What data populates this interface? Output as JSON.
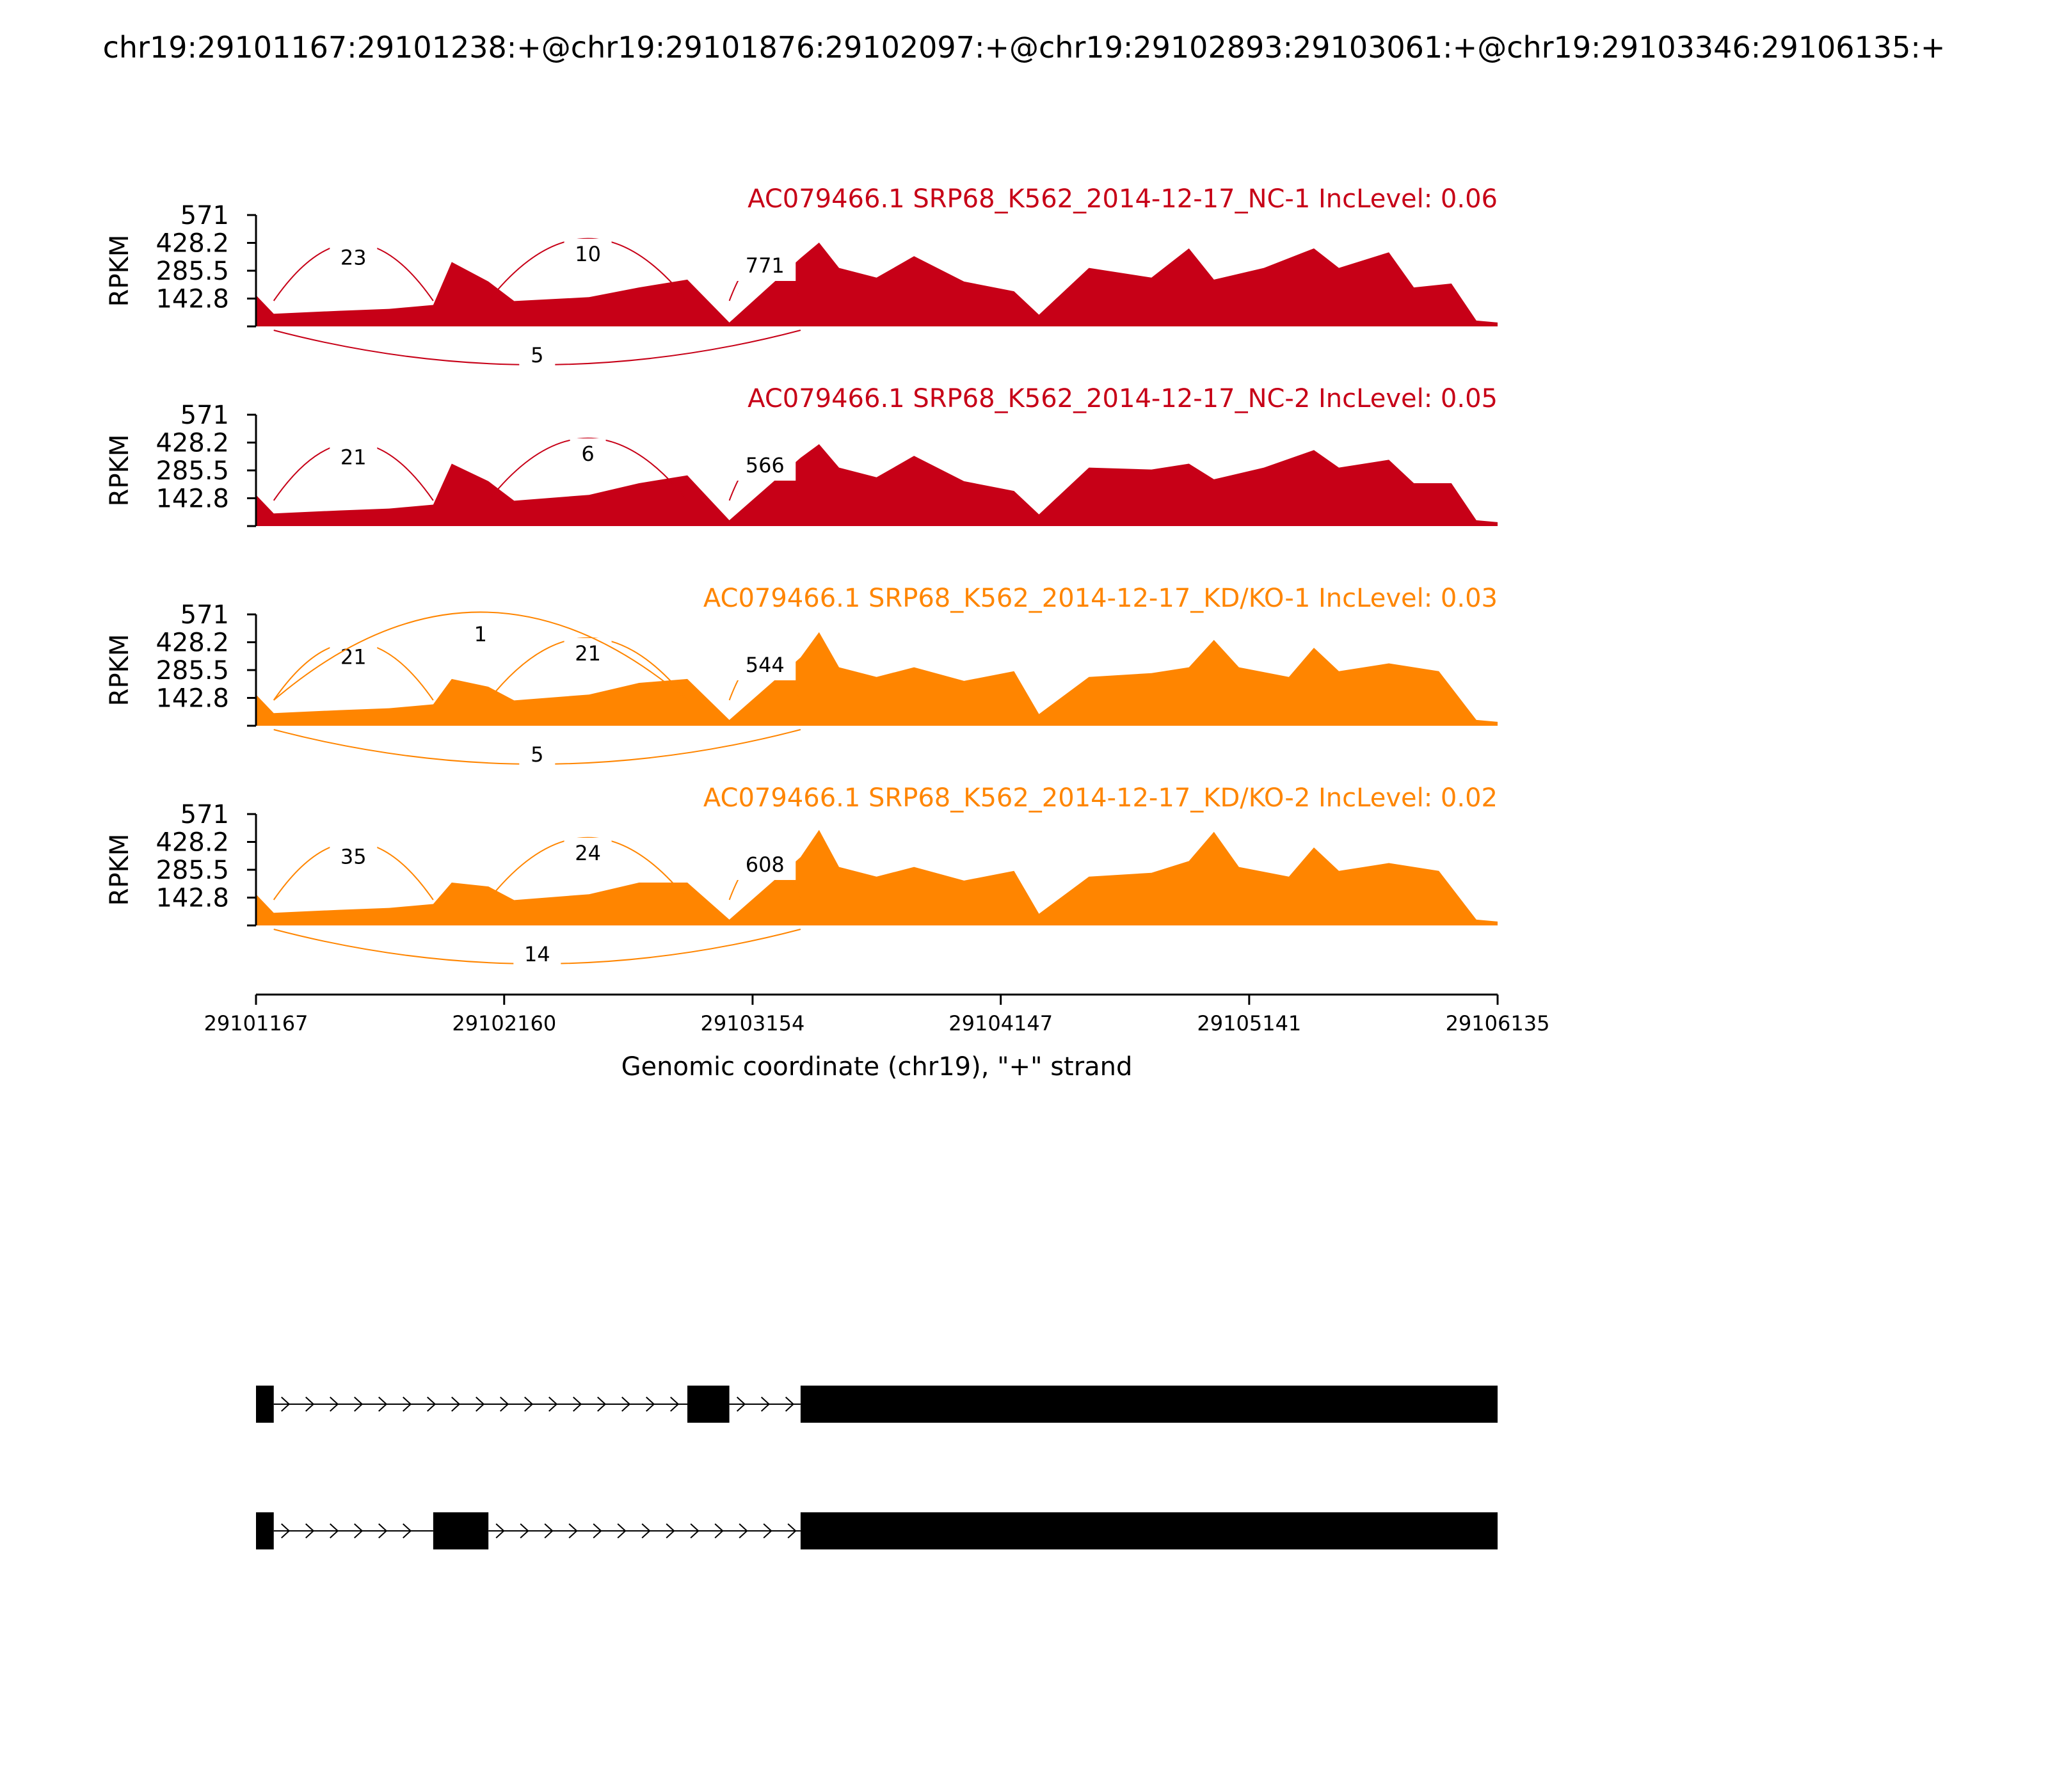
{
  "title": "chr19:29101167:29101238:+@chr19:29101876:29102097:+@chr19:29102893:29103061:+@chr19:29103346:29106135:+",
  "colors": {
    "nc": "#c70017",
    "kd": "#ff8500",
    "axis": "#000000",
    "gene": "#000000"
  },
  "chart_data": {
    "type": "area",
    "xlabel": "Genomic coordinate (chr19), \"+\" strand",
    "ylabel": "RPKM",
    "xlim": [
      29101167,
      29106135
    ],
    "ylim": [
      0,
      571
    ],
    "xticks": [
      29101167,
      29102160,
      29103154,
      29104147,
      29105141,
      29106135
    ],
    "yticks": [
      142.8,
      285.5,
      428.2,
      571
    ],
    "ytick_labels": [
      "142.8",
      "285.5",
      "428.2",
      "571"
    ],
    "exons": [
      [
        29101167,
        29101238
      ],
      [
        29101876,
        29102097
      ],
      [
        29102893,
        29103061
      ],
      [
        29103346,
        29106135
      ]
    ],
    "series": [
      {
        "name": "AC079466.1 SRP68_K562_2014-12-17_NC-1 IncLevel: 0.06",
        "group": "nc",
        "coverage": [
          [
            29101167,
            160
          ],
          [
            29101238,
            65
          ],
          [
            29101500,
            80
          ],
          [
            29101700,
            90
          ],
          [
            29101876,
            110
          ],
          [
            29101950,
            330
          ],
          [
            29102097,
            230
          ],
          [
            29102200,
            130
          ],
          [
            29102500,
            150
          ],
          [
            29102700,
            200
          ],
          [
            29102893,
            240
          ],
          [
            29103061,
            20
          ],
          [
            29103346,
            350
          ],
          [
            29103420,
            430
          ],
          [
            29103500,
            300
          ],
          [
            29103650,
            250
          ],
          [
            29103800,
            360
          ],
          [
            29104000,
            230
          ],
          [
            29104200,
            180
          ],
          [
            29104300,
            60
          ],
          [
            29104500,
            300
          ],
          [
            29104750,
            250
          ],
          [
            29104900,
            400
          ],
          [
            29105000,
            240
          ],
          [
            29105200,
            300
          ],
          [
            29105400,
            400
          ],
          [
            29105500,
            300
          ],
          [
            29105700,
            380
          ],
          [
            29105800,
            200
          ],
          [
            29105950,
            220
          ],
          [
            29106050,
            30
          ],
          [
            29106135,
            20
          ]
        ],
        "junctions": [
          {
            "from": 29101238,
            "to": 29101876,
            "count": "23",
            "side": "above"
          },
          {
            "from": 29102097,
            "to": 29102893,
            "count": "10",
            "side": "above"
          },
          {
            "from": 29103061,
            "to": 29103346,
            "count": "771",
            "side": "above"
          },
          {
            "from": 29101238,
            "to": 29103346,
            "count": "5",
            "side": "below"
          }
        ]
      },
      {
        "name": "AC079466.1 SRP68_K562_2014-12-17_NC-2 IncLevel: 0.05",
        "group": "nc",
        "coverage": [
          [
            29101167,
            160
          ],
          [
            29101238,
            65
          ],
          [
            29101500,
            80
          ],
          [
            29101700,
            90
          ],
          [
            29101876,
            110
          ],
          [
            29101950,
            320
          ],
          [
            29102097,
            230
          ],
          [
            29102200,
            130
          ],
          [
            29102500,
            160
          ],
          [
            29102700,
            220
          ],
          [
            29102893,
            260
          ],
          [
            29103061,
            30
          ],
          [
            29103346,
            350
          ],
          [
            29103420,
            420
          ],
          [
            29103500,
            300
          ],
          [
            29103650,
            250
          ],
          [
            29103800,
            360
          ],
          [
            29104000,
            230
          ],
          [
            29104200,
            180
          ],
          [
            29104300,
            60
          ],
          [
            29104500,
            300
          ],
          [
            29104750,
            290
          ],
          [
            29104900,
            320
          ],
          [
            29105000,
            240
          ],
          [
            29105200,
            300
          ],
          [
            29105400,
            390
          ],
          [
            29105500,
            300
          ],
          [
            29105700,
            340
          ],
          [
            29105800,
            220
          ],
          [
            29105950,
            220
          ],
          [
            29106050,
            30
          ],
          [
            29106135,
            20
          ]
        ],
        "junctions": [
          {
            "from": 29101238,
            "to": 29101876,
            "count": "21",
            "side": "above"
          },
          {
            "from": 29102097,
            "to": 29102893,
            "count": "6",
            "side": "above"
          },
          {
            "from": 29103061,
            "to": 29103346,
            "count": "566",
            "side": "above"
          }
        ]
      },
      {
        "name": "AC079466.1 SRP68_K562_2014-12-17_KD/KO-1 IncLevel: 0.03",
        "group": "kd",
        "coverage": [
          [
            29101167,
            160
          ],
          [
            29101238,
            65
          ],
          [
            29101500,
            80
          ],
          [
            29101700,
            90
          ],
          [
            29101876,
            110
          ],
          [
            29101950,
            240
          ],
          [
            29102097,
            200
          ],
          [
            29102200,
            130
          ],
          [
            29102500,
            160
          ],
          [
            29102700,
            220
          ],
          [
            29102893,
            240
          ],
          [
            29103061,
            30
          ],
          [
            29103346,
            350
          ],
          [
            29103420,
            480
          ],
          [
            29103500,
            300
          ],
          [
            29103650,
            250
          ],
          [
            29103800,
            300
          ],
          [
            29104000,
            230
          ],
          [
            29104200,
            280
          ],
          [
            29104300,
            60
          ],
          [
            29104500,
            250
          ],
          [
            29104750,
            270
          ],
          [
            29104900,
            300
          ],
          [
            29105000,
            440
          ],
          [
            29105100,
            300
          ],
          [
            29105300,
            250
          ],
          [
            29105400,
            400
          ],
          [
            29105500,
            280
          ],
          [
            29105700,
            320
          ],
          [
            29105900,
            280
          ],
          [
            29106050,
            30
          ],
          [
            29106135,
            20
          ]
        ],
        "junctions": [
          {
            "from": 29101238,
            "to": 29101876,
            "count": "21",
            "side": "above"
          },
          {
            "from": 29102097,
            "to": 29102893,
            "count": "21",
            "side": "above"
          },
          {
            "from": 29101238,
            "to": 29102893,
            "count": "1",
            "side": "above"
          },
          {
            "from": 29103061,
            "to": 29103346,
            "count": "544",
            "side": "above"
          },
          {
            "from": 29101238,
            "to": 29103346,
            "count": "5",
            "side": "below"
          }
        ]
      },
      {
        "name": "AC079466.1 SRP68_K562_2014-12-17_KD/KO-2 IncLevel: 0.02",
        "group": "kd",
        "coverage": [
          [
            29101167,
            160
          ],
          [
            29101238,
            65
          ],
          [
            29101500,
            80
          ],
          [
            29101700,
            90
          ],
          [
            29101876,
            110
          ],
          [
            29101950,
            220
          ],
          [
            29102097,
            200
          ],
          [
            29102200,
            130
          ],
          [
            29102500,
            160
          ],
          [
            29102700,
            220
          ],
          [
            29102893,
            220
          ],
          [
            29103061,
            30
          ],
          [
            29103346,
            350
          ],
          [
            29103420,
            490
          ],
          [
            29103500,
            300
          ],
          [
            29103650,
            250
          ],
          [
            29103800,
            300
          ],
          [
            29104000,
            230
          ],
          [
            29104200,
            280
          ],
          [
            29104300,
            60
          ],
          [
            29104500,
            250
          ],
          [
            29104750,
            270
          ],
          [
            29104900,
            330
          ],
          [
            29105000,
            480
          ],
          [
            29105100,
            300
          ],
          [
            29105300,
            250
          ],
          [
            29105400,
            400
          ],
          [
            29105500,
            280
          ],
          [
            29105700,
            320
          ],
          [
            29105900,
            280
          ],
          [
            29106050,
            30
          ],
          [
            29106135,
            20
          ]
        ],
        "junctions": [
          {
            "from": 29101238,
            "to": 29101876,
            "count": "35",
            "side": "above"
          },
          {
            "from": 29102097,
            "to": 29102893,
            "count": "24",
            "side": "above"
          },
          {
            "from": 29103061,
            "to": 29103346,
            "count": "608",
            "side": "above"
          },
          {
            "from": 29101238,
            "to": 29103346,
            "count": "14",
            "side": "below"
          }
        ]
      }
    ],
    "isoforms": [
      {
        "exons": [
          [
            29101167,
            29101238
          ],
          [
            29102893,
            29103061
          ],
          [
            29103346,
            29106135
          ]
        ]
      },
      {
        "exons": [
          [
            29101167,
            29101238
          ],
          [
            29101876,
            29102097
          ],
          [
            29103346,
            29106135
          ]
        ]
      }
    ]
  }
}
